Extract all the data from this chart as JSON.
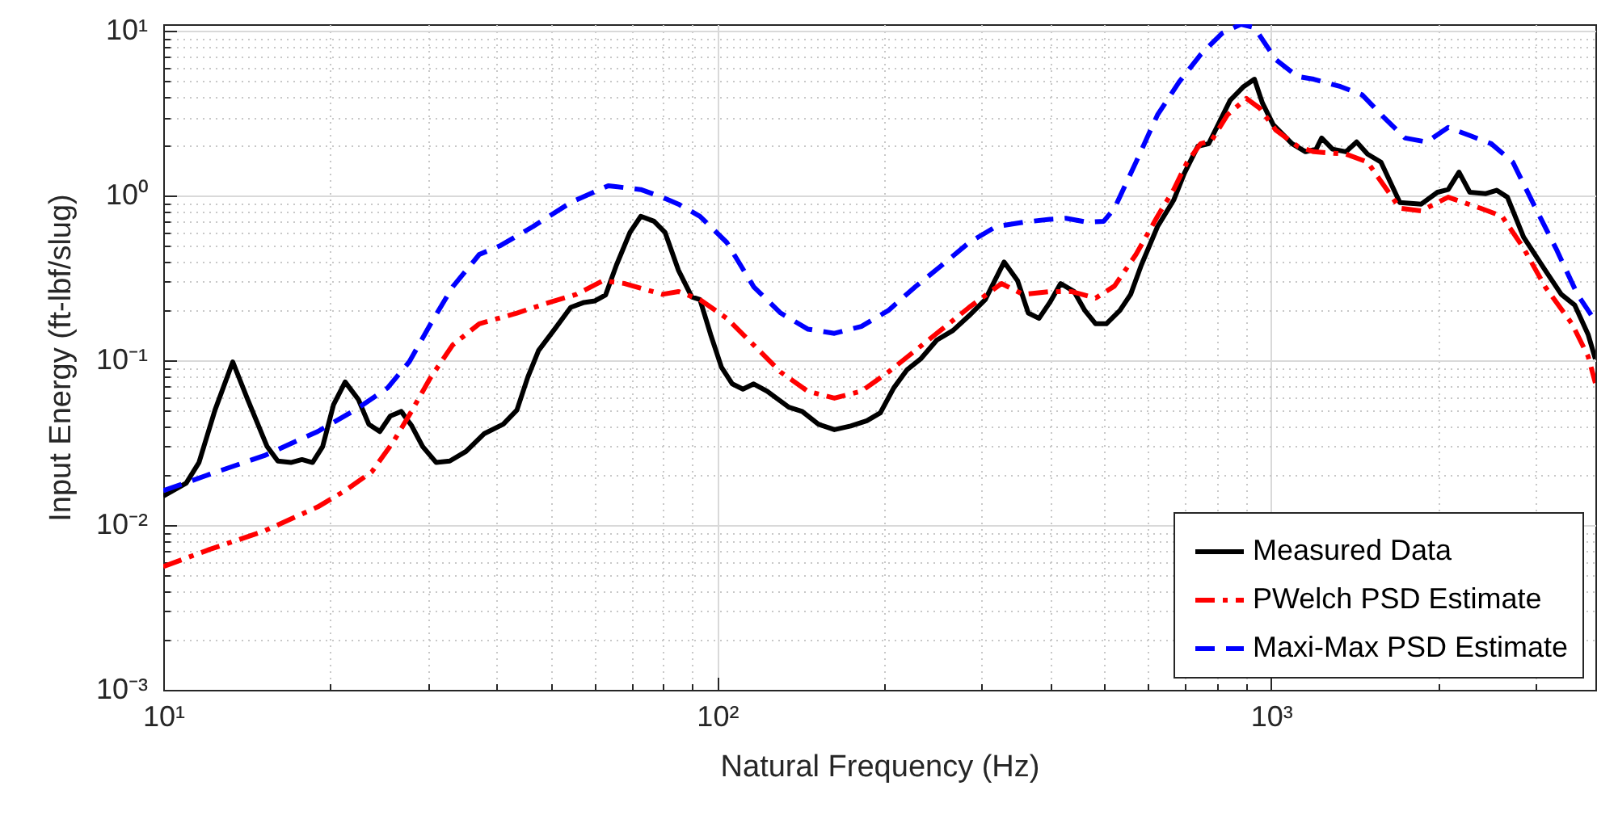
{
  "chart_data": {
    "type": "line",
    "xlabel": "Natural Frequency (Hz)",
    "ylabel": "Input Energy (ft-lbf/slug)",
    "log": "xy",
    "grid": true,
    "legend": "bottom right",
    "marker": "none",
    "xlim": [
      10,
      3850
    ],
    "ylim": [
      0.001,
      11
    ],
    "xticks": [
      {
        "value": 10,
        "label": "10¹"
      },
      {
        "value": 20,
        "label": null
      },
      {
        "value": 30,
        "label": null
      },
      {
        "value": 40,
        "label": null
      },
      {
        "value": 50,
        "label": null
      },
      {
        "value": 60,
        "label": null
      },
      {
        "value": 70,
        "label": null
      },
      {
        "value": 80,
        "label": null
      },
      {
        "value": 90,
        "label": null
      },
      {
        "value": 100,
        "label": "10²"
      },
      {
        "value": 200,
        "label": null
      },
      {
        "value": 300,
        "label": null
      },
      {
        "value": 400,
        "label": null
      },
      {
        "value": 500,
        "label": null
      },
      {
        "value": 600,
        "label": null
      },
      {
        "value": 700,
        "label": null
      },
      {
        "value": 800,
        "label": null
      },
      {
        "value": 900,
        "label": null
      },
      {
        "value": 1000,
        "label": "10³"
      },
      {
        "value": 2000,
        "label": null
      },
      {
        "value": 3000,
        "label": null
      }
    ],
    "yticks": [
      {
        "value": 0.001,
        "label": "10⁻³"
      },
      {
        "value": 0.002,
        "label": null
      },
      {
        "value": 0.003,
        "label": null
      },
      {
        "value": 0.004,
        "label": null
      },
      {
        "value": 0.005,
        "label": null
      },
      {
        "value": 0.006,
        "label": null
      },
      {
        "value": 0.007,
        "label": null
      },
      {
        "value": 0.008,
        "label": null
      },
      {
        "value": 0.009,
        "label": null
      },
      {
        "value": 0.01,
        "label": "10⁻²"
      },
      {
        "value": 0.02,
        "label": null
      },
      {
        "value": 0.03,
        "label": null
      },
      {
        "value": 0.04,
        "label": null
      },
      {
        "value": 0.05,
        "label": null
      },
      {
        "value": 0.06,
        "label": null
      },
      {
        "value": 0.07,
        "label": null
      },
      {
        "value": 0.08,
        "label": null
      },
      {
        "value": 0.09,
        "label": null
      },
      {
        "value": 0.1,
        "label": "10⁻¹"
      },
      {
        "value": 0.2,
        "label": null
      },
      {
        "value": 0.3,
        "label": null
      },
      {
        "value": 0.4,
        "label": null
      },
      {
        "value": 0.5,
        "label": null
      },
      {
        "value": 0.6,
        "label": null
      },
      {
        "value": 0.7,
        "label": null
      },
      {
        "value": 0.8,
        "label": null
      },
      {
        "value": 0.9,
        "label": null
      },
      {
        "value": 1,
        "label": "10⁰"
      },
      {
        "value": 2,
        "label": null
      },
      {
        "value": 3,
        "label": null
      },
      {
        "value": 4,
        "label": null
      },
      {
        "value": 5,
        "label": null
      },
      {
        "value": 6,
        "label": null
      },
      {
        "value": 7,
        "label": null
      },
      {
        "value": 8,
        "label": null
      },
      {
        "value": 9,
        "label": null
      },
      {
        "value": 10,
        "label": "10¹"
      }
    ],
    "series": [
      {
        "name": "Measured Data",
        "color": "#000000",
        "line_style": "solid",
        "x": [
          10,
          11,
          11.6,
          12.4,
          13.35,
          14.2,
          15.4,
          16.1,
          17,
          17.8,
          18.6,
          19.4,
          20.3,
          21.3,
          22.5,
          23.5,
          24.6,
          25.7,
          26.9,
          28.1,
          29.4,
          31.1,
          32.9,
          35.2,
          38,
          41.1,
          43.5,
          45.5,
          47.6,
          50.9,
          54.4,
          57.5,
          60.2,
          62.9,
          65.8,
          69.6,
          72.8,
          76.9,
          80.5,
          85.1,
          90,
          93.1,
          97.3,
          101.8,
          106.5,
          111.3,
          116.4,
          123.1,
          134.7,
          142.4,
          152.3,
          162.8,
          174.2,
          186.3,
          197,
          208.3,
          220.3,
          232.9,
          249.2,
          266.5,
          285,
          304.8,
          329.6,
          348.6,
          364.5,
          381.1,
          398.6,
          416.9,
          440.9,
          461.1,
          482.2,
          504.2,
          533.3,
          557.8,
          583.2,
          623.7,
          667,
          697.5,
          737.7,
          771.5,
          806.7,
          843.6,
          892.1,
          933,
          964.8,
          1009,
          1091,
          1154,
          1206,
          1234,
          1291,
          1365,
          1427,
          1493,
          1579,
          1708,
          1867,
          1997,
          2088,
          2184,
          2284,
          2442,
          2554,
          2671,
          2857,
          3124,
          3341,
          3532,
          3735,
          3850
        ],
        "values": [
          0.015,
          0.018,
          0.024,
          0.05,
          0.098,
          0.058,
          0.03,
          0.0245,
          0.024,
          0.025,
          0.024,
          0.03,
          0.054,
          0.074,
          0.058,
          0.041,
          0.037,
          0.046,
          0.049,
          0.04,
          0.03,
          0.024,
          0.0245,
          0.028,
          0.036,
          0.041,
          0.05,
          0.079,
          0.115,
          0.155,
          0.21,
          0.225,
          0.23,
          0.25,
          0.38,
          0.6,
          0.75,
          0.7,
          0.6,
          0.354,
          0.243,
          0.234,
          0.144,
          0.091,
          0.072,
          0.067,
          0.072,
          0.065,
          0.052,
          0.049,
          0.041,
          0.038,
          0.04,
          0.043,
          0.048,
          0.068,
          0.088,
          0.102,
          0.133,
          0.152,
          0.187,
          0.234,
          0.396,
          0.305,
          0.194,
          0.18,
          0.225,
          0.293,
          0.262,
          0.201,
          0.167,
          0.167,
          0.201,
          0.252,
          0.38,
          0.65,
          0.94,
          1.37,
          2,
          2.07,
          2.8,
          3.8,
          4.6,
          5.1,
          3.65,
          2.7,
          2.07,
          1.85,
          1.92,
          2.24,
          1.92,
          1.85,
          2.12,
          1.79,
          1.6,
          0.91,
          0.89,
          1.05,
          1.09,
          1.39,
          1.05,
          1.03,
          1.08,
          0.98,
          0.56,
          0.354,
          0.252,
          0.217,
          0.144,
          0.102
        ]
      },
      {
        "name": "PWelch PSD Estimate",
        "color": "#ff0000",
        "line_style": "dashdot",
        "x": [
          10,
          12.1,
          15.2,
          19,
          21.3,
          23.8,
          26,
          27.8,
          30.4,
          33.3,
          37.2,
          43.5,
          49.8,
          55.7,
          62.2,
          68.1,
          79.6,
          85.1,
          93.1,
          104.1,
          116.4,
          130.2,
          145.7,
          162.8,
          182.1,
          203.7,
          227.9,
          254.8,
          285,
          326,
          356.5,
          398.6,
          435.9,
          482.2,
          521.5,
          570.3,
          623.7,
          667,
          705.4,
          746,
          780,
          834.1,
          902.4,
          954.1,
          1020,
          1116,
          1194,
          1365,
          1493,
          1708,
          1867,
          2088,
          2388,
          2612,
          2857,
          3124,
          3493,
          3735,
          3850
        ],
        "values": [
          0.0056,
          0.0071,
          0.0092,
          0.0129,
          0.0162,
          0.0211,
          0.0319,
          0.0465,
          0.079,
          0.124,
          0.167,
          0.194,
          0.225,
          0.252,
          0.305,
          0.293,
          0.252,
          0.262,
          0.234,
          0.18,
          0.124,
          0.085,
          0.065,
          0.059,
          0.065,
          0.085,
          0.115,
          0.155,
          0.21,
          0.293,
          0.252,
          0.262,
          0.262,
          0.239,
          0.283,
          0.44,
          0.75,
          1.09,
          1.6,
          2.07,
          2.15,
          3.1,
          3.9,
          3.4,
          2.5,
          2,
          1.85,
          1.79,
          1.6,
          0.84,
          0.81,
          0.98,
          0.84,
          0.75,
          0.48,
          0.28,
          0.167,
          0.106,
          0.073
        ]
      },
      {
        "name": "Maxi-Max PSD Estimate",
        "color": "#0000ff",
        "line_style": "dashed",
        "x": [
          10,
          10.99,
          12.1,
          15.2,
          19,
          22.2,
          25.4,
          27.8,
          30.4,
          33.3,
          37.2,
          40.7,
          46.5,
          54.4,
          63.6,
          72.8,
          79.6,
          85.1,
          93.1,
          104.1,
          116.4,
          130.2,
          145.7,
          162.8,
          182.1,
          203.7,
          227.9,
          254.8,
          285,
          318.7,
          356.5,
          398.6,
          426.4,
          466.3,
          498.8,
          521.5,
          570.3,
          623.7,
          682,
          746,
          815.9,
          882.4,
          933,
          1020,
          1116,
          1194,
          1335,
          1460,
          1597,
          1746,
          1910,
          2088,
          2284,
          2497,
          2732,
          2987,
          3267,
          3573,
          3820
        ],
        "values": [
          0.0162,
          0.0181,
          0.0203,
          0.0264,
          0.037,
          0.05,
          0.068,
          0.098,
          0.167,
          0.28,
          0.44,
          0.5,
          0.65,
          0.91,
          1.15,
          1.09,
          0.98,
          0.89,
          0.75,
          0.52,
          0.28,
          0.194,
          0.155,
          0.146,
          0.161,
          0.201,
          0.28,
          0.38,
          0.52,
          0.65,
          0.69,
          0.72,
          0.73,
          0.69,
          0.7,
          0.84,
          1.6,
          3.1,
          4.9,
          7.2,
          9.7,
          11,
          10.5,
          6.7,
          5.3,
          5.1,
          4.6,
          4.1,
          3,
          2.24,
          2.12,
          2.6,
          2.32,
          2.07,
          1.6,
          0.87,
          0.48,
          0.252,
          0.18
        ]
      }
    ]
  }
}
